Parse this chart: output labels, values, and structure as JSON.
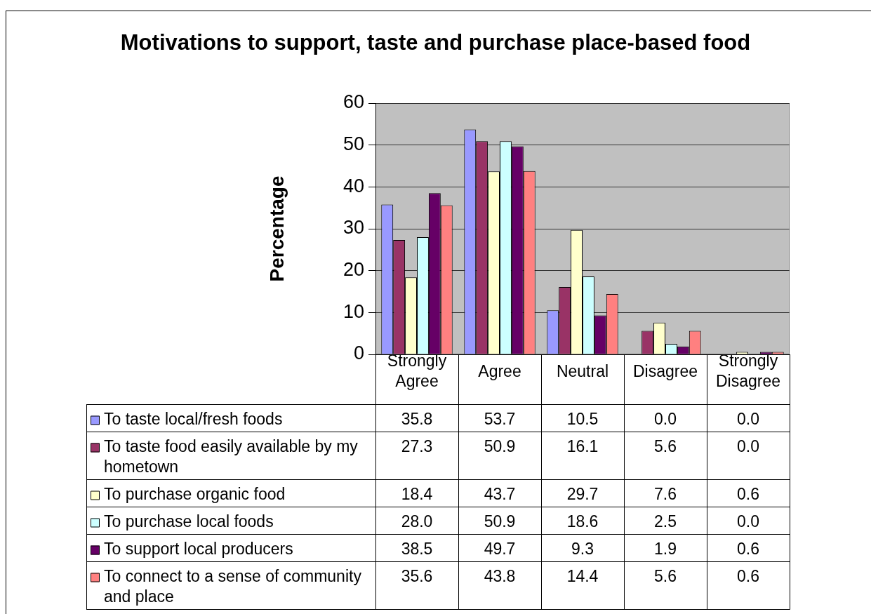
{
  "chart_data": {
    "type": "bar",
    "title": "Motivations to support, taste and purchase place-based food",
    "ylabel": "Percentage",
    "categories": [
      "Strongly Agree",
      "Agree",
      "Neutral",
      "Disagree",
      "Strongly Disagree"
    ],
    "series": [
      {
        "name": "To taste local/fresh foods",
        "color": "#9999ff",
        "values": [
          35.8,
          53.7,
          10.5,
          0.0,
          0.0
        ],
        "value_labels": [
          "35.8",
          "53.7",
          "10.5",
          "0.0",
          "0.0"
        ]
      },
      {
        "name": "To taste food easily available by my hometown",
        "color": "#993366",
        "values": [
          27.3,
          50.9,
          16.1,
          5.6,
          0.0
        ],
        "value_labels": [
          "27.3",
          "50.9",
          "16.1",
          "5.6",
          "0.0"
        ]
      },
      {
        "name": "To purchase organic food",
        "color": "#ffffcc",
        "values": [
          18.4,
          43.7,
          29.7,
          7.6,
          0.6
        ],
        "value_labels": [
          "18.4",
          "43.7",
          "29.7",
          "7.6",
          "0.6"
        ]
      },
      {
        "name": "To purchase local foods",
        "color": "#ccffff",
        "values": [
          28.0,
          50.9,
          18.6,
          2.5,
          0.0
        ],
        "value_labels": [
          "28.0",
          "50.9",
          "18.6",
          "2.5",
          "0.0"
        ]
      },
      {
        "name": "To support local producers",
        "color": "#660066",
        "values": [
          38.5,
          49.7,
          9.3,
          1.9,
          0.6
        ],
        "value_labels": [
          "38.5",
          "49.7",
          "9.3",
          "1.9",
          "0.6"
        ]
      },
      {
        "name": "To connect to a sense of community and place",
        "color": "#ff8080",
        "values": [
          35.6,
          43.8,
          14.4,
          5.6,
          0.6
        ],
        "value_labels": [
          "35.6",
          "43.8",
          "14.4",
          "5.6",
          "0.6"
        ]
      }
    ],
    "ylim": [
      0,
      60
    ],
    "yticks": [
      0,
      10,
      20,
      30,
      40,
      50,
      60
    ],
    "grid": "y",
    "legend": "bottom"
  }
}
